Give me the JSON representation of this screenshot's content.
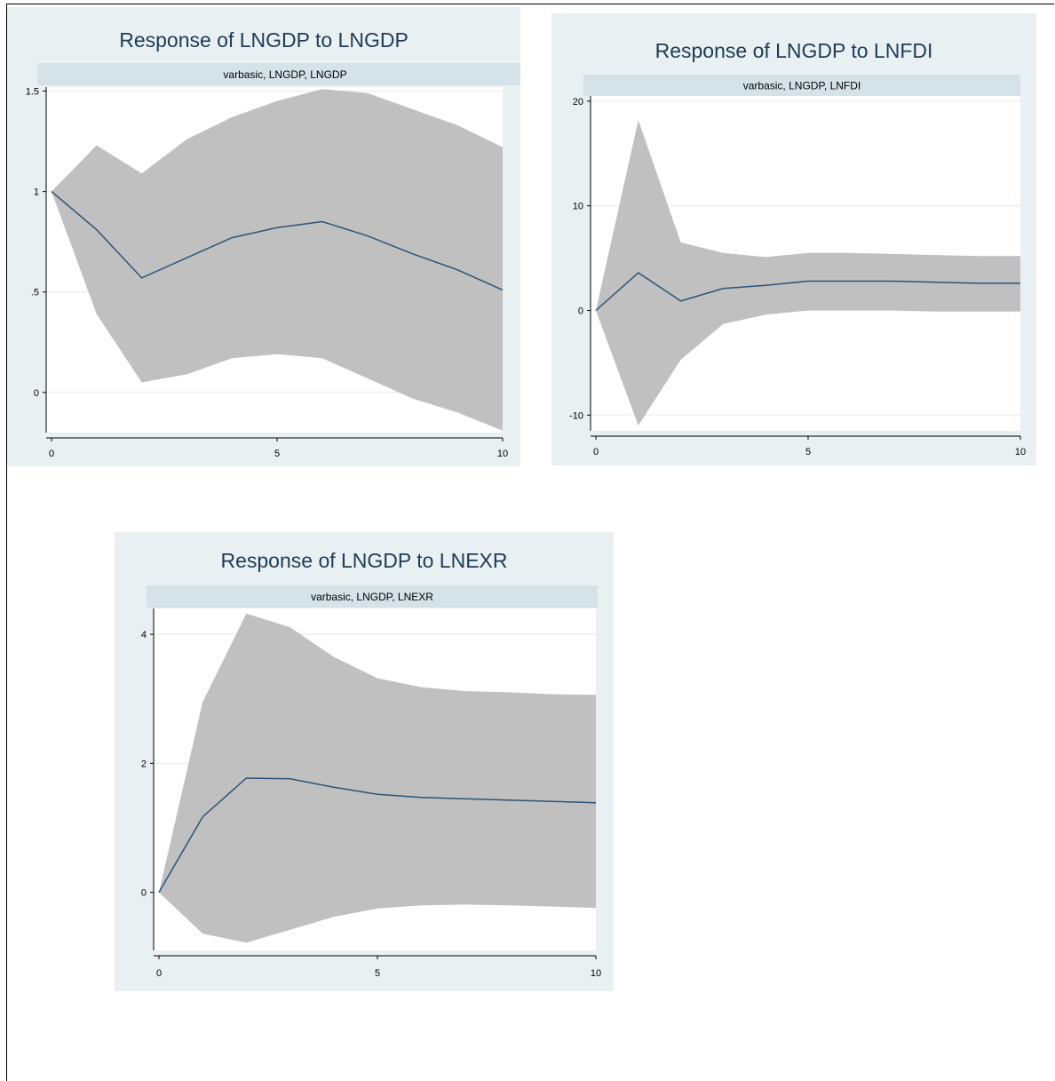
{
  "colors": {
    "panel_bg": "#e9f0f2",
    "plot_bg": "#ffffff",
    "strip_bg": "#d5e2e8",
    "band": "#c0c0c0",
    "line": "#2c5478",
    "title": "#1f3b55",
    "gridline": "#f0f3f4"
  },
  "chart_data": [
    {
      "type": "area",
      "title": "Response of LNGDP to LNGDP",
      "strip_label": "varbasic, LNGDP, LNGDP",
      "xlabel": "",
      "ylabel": "",
      "x": [
        0,
        1,
        2,
        3,
        4,
        5,
        6,
        7,
        8,
        9,
        10
      ],
      "xlim": [
        0,
        10
      ],
      "ylim": [
        -0.2,
        1.52
      ],
      "xticks": [
        0,
        5,
        10
      ],
      "xtick_labels": [
        "0",
        "5",
        "10"
      ],
      "yticks": [
        0,
        0.5,
        1,
        1.5
      ],
      "ytick_labels": [
        "0",
        ".5",
        "1",
        "1.5"
      ],
      "grid": true,
      "series": [
        {
          "role": "band_upper",
          "values": [
            1.0,
            1.23,
            1.09,
            1.26,
            1.37,
            1.45,
            1.51,
            1.49,
            1.41,
            1.33,
            1.22
          ]
        },
        {
          "role": "band_lower",
          "values": [
            1.0,
            0.39,
            0.05,
            0.09,
            0.17,
            0.19,
            0.17,
            0.07,
            -0.03,
            -0.1,
            -0.19
          ]
        },
        {
          "role": "irf",
          "values": [
            1.0,
            0.81,
            0.57,
            0.67,
            0.77,
            0.82,
            0.85,
            0.78,
            0.69,
            0.61,
            0.51
          ]
        }
      ]
    },
    {
      "type": "area",
      "title": "Response of LNGDP to LNFDI",
      "strip_label": "varbasic, LNGDP, LNFDI",
      "xlabel": "",
      "ylabel": "",
      "x": [
        0,
        1,
        2,
        3,
        4,
        5,
        6,
        7,
        8,
        9,
        10
      ],
      "xlim": [
        0,
        10
      ],
      "ylim": [
        -11.5,
        20.5
      ],
      "xticks": [
        0,
        5,
        10
      ],
      "xtick_labels": [
        "0",
        "5",
        "10"
      ],
      "yticks": [
        -10,
        0,
        10,
        20
      ],
      "ytick_labels": [
        "-10",
        "0",
        "10",
        "20"
      ],
      "grid": true,
      "series": [
        {
          "role": "band_upper",
          "values": [
            0,
            18.2,
            6.5,
            5.5,
            5.1,
            5.5,
            5.5,
            5.4,
            5.3,
            5.2,
            5.2
          ]
        },
        {
          "role": "band_lower",
          "values": [
            0,
            -11.0,
            -4.7,
            -1.3,
            -0.4,
            0.0,
            0.0,
            0.0,
            -0.1,
            -0.1,
            -0.1
          ]
        },
        {
          "role": "irf",
          "values": [
            0,
            3.6,
            0.9,
            2.1,
            2.4,
            2.8,
            2.8,
            2.8,
            2.7,
            2.6,
            2.6
          ]
        }
      ]
    },
    {
      "type": "area",
      "title": "Response of LNGDP to LNEXR",
      "strip_label": "varbasic, LNGDP, LNEXR",
      "xlabel": "",
      "ylabel": "",
      "x": [
        0,
        1,
        2,
        3,
        4,
        5,
        6,
        7,
        8,
        9,
        10
      ],
      "xlim": [
        0,
        10
      ],
      "ylim": [
        -0.9,
        4.4
      ],
      "xticks": [
        0,
        5,
        10
      ],
      "xtick_labels": [
        "0",
        "5",
        "10"
      ],
      "yticks": [
        0,
        2,
        4
      ],
      "ytick_labels": [
        "0",
        "2",
        "4"
      ],
      "grid": true,
      "series": [
        {
          "role": "band_upper",
          "values": [
            0,
            2.95,
            4.32,
            4.11,
            3.65,
            3.32,
            3.18,
            3.12,
            3.1,
            3.07,
            3.06
          ]
        },
        {
          "role": "band_lower",
          "values": [
            0,
            -0.64,
            -0.78,
            -0.58,
            -0.38,
            -0.25,
            -0.2,
            -0.19,
            -0.2,
            -0.22,
            -0.24
          ]
        },
        {
          "role": "irf",
          "values": [
            0,
            1.17,
            1.77,
            1.76,
            1.63,
            1.52,
            1.47,
            1.45,
            1.43,
            1.41,
            1.39
          ]
        }
      ]
    }
  ]
}
